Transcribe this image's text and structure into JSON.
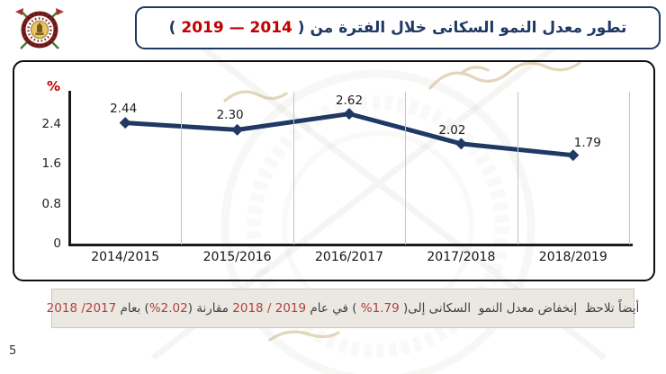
{
  "slide": {
    "page_number": "5",
    "logo_name": "capmas-emblem",
    "colors": {
      "navy": "#1F3864",
      "title_red": "#C00000",
      "note_red": "#B04040",
      "axis": "#1a1a1a",
      "grid": "#c4c4c4",
      "note_bg": "#EBE8E2",
      "note_border": "#CCC9C2",
      "note_text": "#3F3F3F"
    }
  },
  "title": {
    "segments": [
      {
        "text": "تطور معدل النمو السكانى خلال الفترة من ( ",
        "color": "navy",
        "dir": "rtl"
      },
      {
        "text": "2014",
        "color": "red",
        "dir": "ltr"
      },
      {
        "text": " — ",
        "color": "red",
        "dir": "rtl"
      },
      {
        "text": "2019",
        "color": "red",
        "dir": "ltr"
      },
      {
        "text": " )",
        "color": "navy",
        "dir": "rtl"
      }
    ]
  },
  "chart_data": {
    "type": "line",
    "categories": [
      "2014/2015",
      "2015/2016",
      "2016/2017",
      "2017/2018",
      "2018/2019"
    ],
    "values": [
      2.44,
      2.3,
      2.62,
      2.02,
      1.79
    ],
    "data_labels": [
      "2.44",
      "2.30",
      "2.62",
      "2.02",
      "1.79"
    ],
    "ylabel": "%",
    "xlabel": "",
    "y_ticks": [
      "0",
      "0.8",
      "1.6",
      "2.4"
    ],
    "y_tick_values": [
      0,
      0.8,
      1.6,
      2.4
    ],
    "ylim": [
      0,
      3.1
    ],
    "grid": "vertical-category-boundaries",
    "legend": "none",
    "series_color": "#1F3864",
    "marker": "diamond"
  },
  "note": {
    "segments": [
      {
        "text": "أيضاً تلاحظ  إنخفاض معدل النمو  السكانى إلى( ",
        "color": "dark",
        "dir": "rtl"
      },
      {
        "text": "%1.79",
        "color": "red",
        "dir": "ltr"
      },
      {
        "text": " ) في عام ",
        "color": "dark",
        "dir": "rtl"
      },
      {
        "text": "2018 / 2019",
        "color": "red",
        "dir": "ltr"
      },
      {
        "text": " مقارنة (",
        "color": "dark",
        "dir": "rtl"
      },
      {
        "text": "%2.02",
        "color": "red",
        "dir": "ltr"
      },
      {
        "text": ") بعام ",
        "color": "dark",
        "dir": "rtl"
      },
      {
        "text": "2018 /2017",
        "color": "red",
        "dir": "ltr"
      }
    ]
  }
}
